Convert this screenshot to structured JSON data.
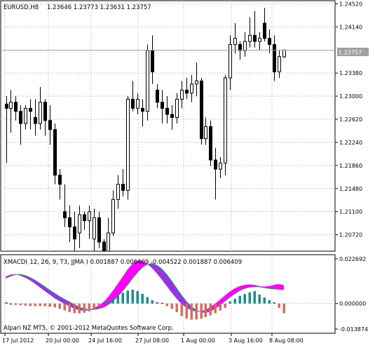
{
  "header": {
    "symbol": "EURUSD,H8",
    "ohlc": "1.23646 1.23773 1.23631 1.23757"
  },
  "price_axis": {
    "ticks": [
      "1.24520",
      "1.24140",
      "1.23757",
      "1.23380",
      "1.23000",
      "1.22620",
      "1.22240",
      "1.21860",
      "1.21480",
      "1.21100",
      "1.20720"
    ],
    "current_price_label": "1.23757"
  },
  "time_axis": {
    "labels": [
      "17 Jul 2012",
      "20 Jul 00:00",
      "24 Jul 16:00",
      "27 Jul 08:00",
      "1 Aug 00:00",
      "3 Aug 16:00",
      "8 Aug 08:00"
    ]
  },
  "indicator": {
    "title": "XMACD( 12, 26, 9, T3, JJMA ) 0.001887 0.006409 -0.004522 0.001887 0.006409",
    "ticks": [
      "0.022692",
      "0.000000",
      "-0.013874"
    ],
    "copyright": "Alpari NZ MT5, © 2001-2012 MetaQuotes Software Corp."
  },
  "colors": {
    "bull_body": "#ffffff",
    "bear_body": "#000000",
    "wick": "#000000",
    "grid": "#c8c8c8",
    "price_line": "#a0a0a0",
    "hist_pos": "#1e8c8c",
    "hist_neg": "#cd6f62",
    "hist_small": "#8c28c8",
    "cloud_up": "#ff00ff",
    "cloud_down": "#9633e6",
    "signal_line": "#28a050"
  },
  "chart_data": [
    {
      "type": "candlestick",
      "title": "EURUSD,H8",
      "ylim": [
        1.2045,
        1.2457
      ],
      "candles": [
        {
          "o": 1.2287,
          "h": 1.23,
          "l": 1.219,
          "c": 1.228
        },
        {
          "o": 1.228,
          "h": 1.231,
          "l": 1.224,
          "c": 1.229
        },
        {
          "o": 1.229,
          "h": 1.23,
          "l": 1.226,
          "c": 1.2275
        },
        {
          "o": 1.2275,
          "h": 1.2285,
          "l": 1.222,
          "c": 1.2255
        },
        {
          "o": 1.2255,
          "h": 1.2285,
          "l": 1.2245,
          "c": 1.228
        },
        {
          "o": 1.228,
          "h": 1.2295,
          "l": 1.2245,
          "c": 1.2275
        },
        {
          "o": 1.2265,
          "h": 1.2295,
          "l": 1.2235,
          "c": 1.2255
        },
        {
          "o": 1.2255,
          "h": 1.2315,
          "l": 1.2245,
          "c": 1.229
        },
        {
          "o": 1.229,
          "h": 1.2295,
          "l": 1.2235,
          "c": 1.226
        },
        {
          "o": 1.226,
          "h": 1.2285,
          "l": 1.222,
          "c": 1.2245
        },
        {
          "o": 1.2245,
          "h": 1.2255,
          "l": 1.2155,
          "c": 1.217
        },
        {
          "o": 1.217,
          "h": 1.218,
          "l": 1.213,
          "c": 1.2155
        },
        {
          "o": 1.211,
          "h": 1.2155,
          "l": 1.2085,
          "c": 1.21
        },
        {
          "o": 1.21,
          "h": 1.212,
          "l": 1.206,
          "c": 1.2085
        },
        {
          "o": 1.2085,
          "h": 1.211,
          "l": 1.204,
          "c": 1.2065
        },
        {
          "o": 1.2075,
          "h": 1.212,
          "l": 1.205,
          "c": 1.2105
        },
        {
          "o": 1.2105,
          "h": 1.211,
          "l": 1.208,
          "c": 1.2095
        },
        {
          "o": 1.2095,
          "h": 1.212,
          "l": 1.2065,
          "c": 1.211
        },
        {
          "o": 1.2065,
          "h": 1.2115,
          "l": 1.2025,
          "c": 1.21
        },
        {
          "o": 1.21,
          "h": 1.211,
          "l": 1.205,
          "c": 1.206
        },
        {
          "o": 1.206,
          "h": 1.2065,
          "l": 1.2015,
          "c": 1.2045
        },
        {
          "o": 1.2045,
          "h": 1.21,
          "l": 1.2035,
          "c": 1.2075
        },
        {
          "o": 1.2075,
          "h": 1.2145,
          "l": 1.207,
          "c": 1.213
        },
        {
          "o": 1.213,
          "h": 1.217,
          "l": 1.2115,
          "c": 1.2155
        },
        {
          "o": 1.2155,
          "h": 1.218,
          "l": 1.2135,
          "c": 1.2145
        },
        {
          "o": 1.2145,
          "h": 1.23,
          "l": 1.213,
          "c": 1.2295
        },
        {
          "o": 1.2295,
          "h": 1.2325,
          "l": 1.2275,
          "c": 1.228
        },
        {
          "o": 1.228,
          "h": 1.2305,
          "l": 1.227,
          "c": 1.2295
        },
        {
          "o": 1.228,
          "h": 1.2295,
          "l": 1.225,
          "c": 1.2275
        },
        {
          "o": 1.2275,
          "h": 1.2385,
          "l": 1.226,
          "c": 1.2375
        },
        {
          "o": 1.2375,
          "h": 1.24,
          "l": 1.232,
          "c": 1.234
        },
        {
          "o": 1.231,
          "h": 1.232,
          "l": 1.228,
          "c": 1.229
        },
        {
          "o": 1.229,
          "h": 1.231,
          "l": 1.2255,
          "c": 1.228
        },
        {
          "o": 1.228,
          "h": 1.23,
          "l": 1.2255,
          "c": 1.227
        },
        {
          "o": 1.227,
          "h": 1.2285,
          "l": 1.2245,
          "c": 1.2265
        },
        {
          "o": 1.2265,
          "h": 1.2305,
          "l": 1.2255,
          "c": 1.2295
        },
        {
          "o": 1.2295,
          "h": 1.2325,
          "l": 1.228,
          "c": 1.231
        },
        {
          "o": 1.231,
          "h": 1.233,
          "l": 1.2295,
          "c": 1.2305
        },
        {
          "o": 1.2305,
          "h": 1.2335,
          "l": 1.229,
          "c": 1.232
        },
        {
          "o": 1.232,
          "h": 1.2355,
          "l": 1.23,
          "c": 1.2325
        },
        {
          "o": 1.2325,
          "h": 1.233,
          "l": 1.222,
          "c": 1.223
        },
        {
          "o": 1.223,
          "h": 1.2265,
          "l": 1.222,
          "c": 1.225
        },
        {
          "o": 1.225,
          "h": 1.226,
          "l": 1.2185,
          "c": 1.2195
        },
        {
          "o": 1.2195,
          "h": 1.2215,
          "l": 1.213,
          "c": 1.218
        },
        {
          "o": 1.218,
          "h": 1.22,
          "l": 1.2165,
          "c": 1.219
        },
        {
          "o": 1.219,
          "h": 1.2335,
          "l": 1.217,
          "c": 1.233
        },
        {
          "o": 1.233,
          "h": 1.24,
          "l": 1.231,
          "c": 1.2385
        },
        {
          "o": 1.2385,
          "h": 1.242,
          "l": 1.237,
          "c": 1.2395
        },
        {
          "o": 1.2385,
          "h": 1.239,
          "l": 1.236,
          "c": 1.2375
        },
        {
          "o": 1.2375,
          "h": 1.2405,
          "l": 1.2365,
          "c": 1.239
        },
        {
          "o": 1.239,
          "h": 1.243,
          "l": 1.238,
          "c": 1.24
        },
        {
          "o": 1.24,
          "h": 1.244,
          "l": 1.238,
          "c": 1.239
        },
        {
          "o": 1.239,
          "h": 1.2405,
          "l": 1.2375,
          "c": 1.2395
        },
        {
          "o": 1.242,
          "h": 1.2445,
          "l": 1.239,
          "c": 1.2395
        },
        {
          "o": 1.2395,
          "h": 1.241,
          "l": 1.237,
          "c": 1.2385
        },
        {
          "o": 1.2385,
          "h": 1.24,
          "l": 1.2325,
          "c": 1.234
        },
        {
          "o": 1.234,
          "h": 1.2375,
          "l": 1.233,
          "c": 1.2365
        },
        {
          "o": 1.23646,
          "h": 1.23773,
          "l": 1.23631,
          "c": 1.23757
        }
      ]
    },
    {
      "type": "bar",
      "title": "XMACD( 12, 26, 9, T3, JJMA )",
      "ylim": [
        -0.0138,
        0.02269
      ],
      "histogram": [
        0.0006,
        -0.0001,
        -0.0003,
        -0.0008,
        -0.001,
        -0.0012,
        -0.0012,
        -0.0012,
        -0.0013,
        -0.0015,
        -0.0018,
        -0.0024,
        -0.0032,
        -0.004,
        -0.0045,
        -0.0046,
        -0.0043,
        -0.0036,
        -0.0026,
        -0.0015,
        0.0006,
        0.0016,
        0.0025,
        0.0038,
        0.005,
        0.006,
        0.0064,
        0.0058,
        0.0045,
        0.003,
        0.0015,
        0.0006,
        0.0003,
        -0.0012,
        -0.0025,
        -0.004,
        -0.0058,
        -0.007,
        -0.0075,
        -0.0074,
        -0.007,
        -0.0063,
        -0.0055,
        -0.0045,
        -0.0033,
        -0.002,
        0.001,
        0.0022,
        0.0036,
        0.0044,
        0.0052,
        0.0058,
        0.0042,
        0.0028,
        0.0015,
        0.0006,
        -0.002,
        -0.0045
      ],
      "line_fast": [
        0.0125,
        0.0134,
        0.0136,
        0.013,
        0.012,
        0.0108,
        0.0092,
        0.0075,
        0.0058,
        0.0042,
        0.0025,
        0.0012,
        0.0,
        -0.0012,
        -0.0022,
        -0.003,
        -0.0032,
        -0.003,
        -0.0022,
        -0.001,
        0.0005,
        0.003,
        0.006,
        0.0092,
        0.0125,
        0.0158,
        0.0185,
        0.02,
        0.0198,
        0.0185,
        0.0165,
        0.014,
        0.0112,
        0.0082,
        0.0052,
        0.0024,
        0.0,
        -0.0018,
        -0.003,
        -0.0036,
        -0.0036,
        -0.003,
        -0.0016,
        0.0,
        0.0018,
        0.0038,
        0.0056,
        0.007,
        0.008,
        0.0086,
        0.0088,
        0.0086,
        0.008,
        0.0078,
        0.008,
        0.0086,
        0.009,
        0.0085
      ],
      "line_slow": [
        0.0118,
        0.0128,
        0.0135,
        0.0135,
        0.013,
        0.012,
        0.0108,
        0.0093,
        0.0078,
        0.0062,
        0.0047,
        0.0033,
        0.002,
        0.0008,
        -0.0005,
        -0.0016,
        -0.0024,
        -0.0028,
        -0.0028,
        -0.0024,
        -0.0018,
        -0.0005,
        0.0012,
        0.0035,
        0.006,
        0.0088,
        0.0118,
        0.0145,
        0.0168,
        0.0182,
        0.0186,
        0.0178,
        0.016,
        0.0135,
        0.0105,
        0.0072,
        0.004,
        0.001,
        -0.0014,
        -0.003,
        -0.004,
        -0.0042,
        -0.0035,
        -0.0022,
        -0.0006,
        0.0012,
        0.003,
        0.0046,
        0.006,
        0.007,
        0.0076,
        0.0078,
        0.0078,
        0.0074,
        0.007,
        0.0068,
        0.0066,
        0.0064
      ]
    }
  ]
}
